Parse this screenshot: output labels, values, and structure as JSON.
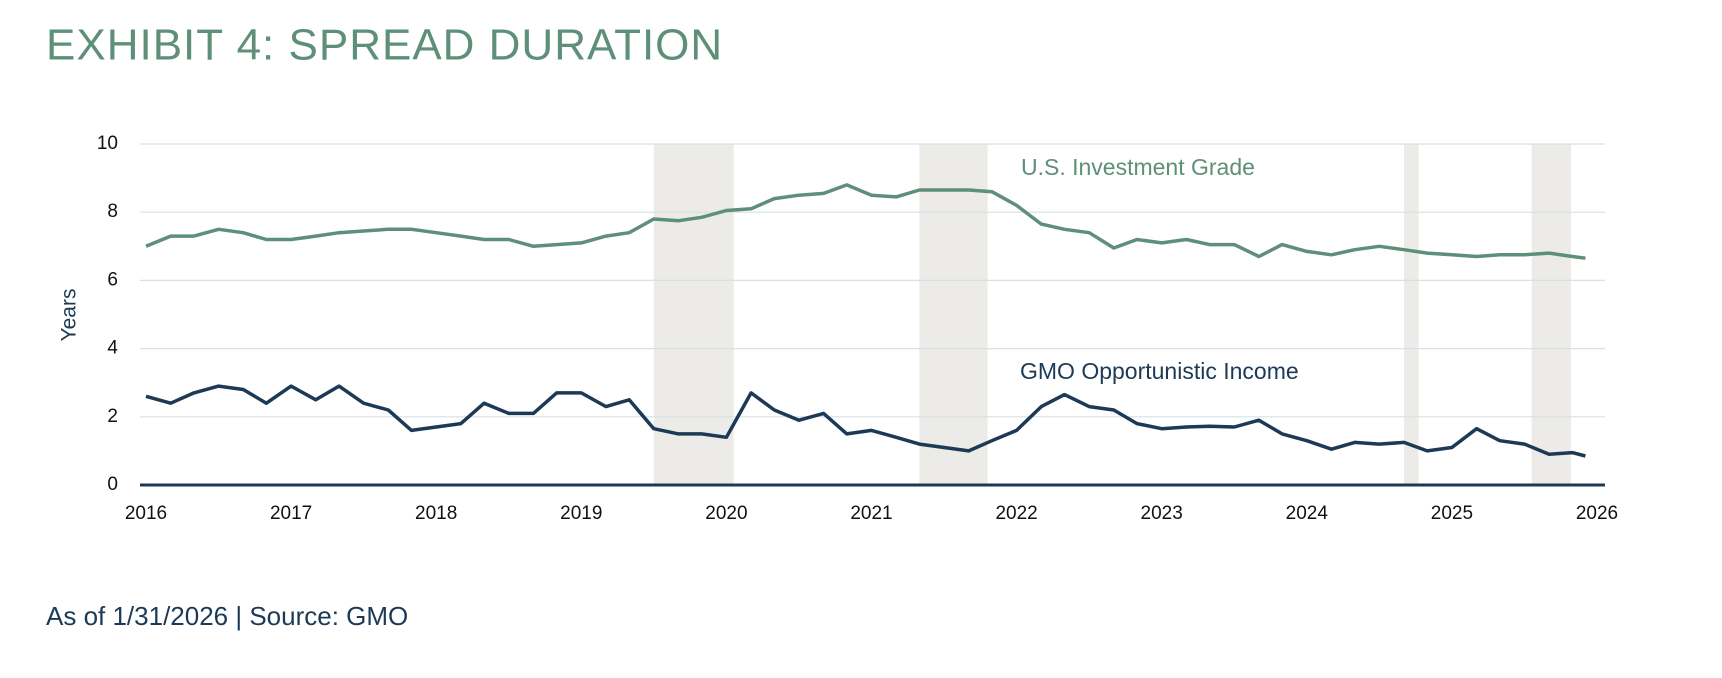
{
  "chart_data": {
    "type": "line",
    "title": "EXHIBIT 4: SPREAD DURATION",
    "y_label": "Years",
    "footnote": "As of 1/31/2026 | Source: GMO",
    "x": [
      2016,
      2016.17,
      2016.33,
      2016.5,
      2016.67,
      2016.83,
      2017,
      2017.17,
      2017.33,
      2017.5,
      2017.67,
      2017.83,
      2018,
      2018.17,
      2018.33,
      2018.5,
      2018.67,
      2018.83,
      2019,
      2019.17,
      2019.33,
      2019.5,
      2019.67,
      2019.83,
      2020,
      2020.17,
      2020.33,
      2020.5,
      2020.67,
      2020.83,
      2021,
      2021.17,
      2021.33,
      2021.5,
      2021.67,
      2021.83,
      2022,
      2022.17,
      2022.33,
      2022.5,
      2022.67,
      2022.83,
      2023,
      2023.17,
      2023.33,
      2023.5,
      2023.67,
      2023.83,
      2024,
      2024.17,
      2024.33,
      2024.5,
      2024.67,
      2024.83,
      2025,
      2025.17,
      2025.33,
      2025.5,
      2025.67,
      2025.83,
      2025.92
    ],
    "series": [
      {
        "name": "U.S. Investment Grade",
        "color": "#5e8f78",
        "values": [
          7.0,
          7.3,
          7.3,
          7.5,
          7.4,
          7.2,
          7.2,
          7.3,
          7.4,
          7.45,
          7.5,
          7.5,
          7.4,
          7.3,
          7.2,
          7.2,
          7.0,
          7.05,
          7.1,
          7.3,
          7.4,
          7.8,
          7.75,
          7.85,
          8.05,
          8.1,
          8.4,
          8.5,
          8.55,
          8.8,
          8.5,
          8.45,
          8.65,
          8.65,
          8.65,
          8.6,
          8.2,
          7.65,
          7.5,
          7.4,
          6.95,
          7.2,
          7.1,
          7.2,
          7.05,
          7.05,
          6.7,
          7.05,
          6.85,
          6.75,
          6.9,
          7.0,
          6.9,
          6.8,
          6.75,
          6.7,
          6.75,
          6.75,
          6.8,
          6.7,
          6.65
        ]
      },
      {
        "name": "GMO Opportunistic Income",
        "color": "#1c3a56",
        "values": [
          2.6,
          2.4,
          2.7,
          2.9,
          2.8,
          2.4,
          2.9,
          2.5,
          2.9,
          2.4,
          2.2,
          1.6,
          1.7,
          1.8,
          2.4,
          2.1,
          2.1,
          2.7,
          2.7,
          2.3,
          2.5,
          1.65,
          1.5,
          1.5,
          1.4,
          2.7,
          2.2,
          1.9,
          2.1,
          1.5,
          1.6,
          1.4,
          1.2,
          1.1,
          1.0,
          1.3,
          1.6,
          2.3,
          2.65,
          2.3,
          2.2,
          1.8,
          1.65,
          1.7,
          1.72,
          1.7,
          1.9,
          1.5,
          1.3,
          1.05,
          1.25,
          1.2,
          1.25,
          1.0,
          1.1,
          1.65,
          1.3,
          1.2,
          0.9,
          0.95,
          0.85
        ]
      }
    ],
    "shaded_ranges": [
      [
        2019.5,
        2020.05
      ],
      [
        2021.33,
        2021.8
      ],
      [
        2024.67,
        2024.77
      ],
      [
        2025.55,
        2025.82
      ]
    ],
    "shade_color": "#ecebe7",
    "xlim": [
      2016,
      2026
    ],
    "xticks": [
      2016,
      2017,
      2018,
      2019,
      2020,
      2021,
      2022,
      2023,
      2024,
      2025,
      2026
    ],
    "ylim": [
      0,
      10
    ],
    "yticks": [
      0,
      2,
      4,
      6,
      8,
      10
    ],
    "grid": true
  }
}
